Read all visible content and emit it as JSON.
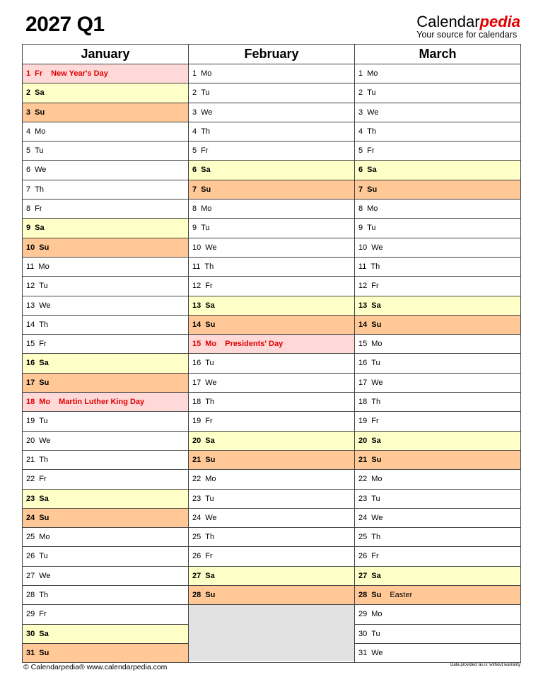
{
  "title": "2027 Q1",
  "logo": {
    "brand_main": "Calendar",
    "brand_accent": "pedia",
    "tagline": "Your source for calendars"
  },
  "colors": {
    "saturday": "#ffffc8",
    "sunday": "#ffc896",
    "holiday_bg": "#ffd8d8",
    "holiday_text": "#e00000",
    "empty": "#e2e2e2"
  },
  "months": [
    {
      "name": "January",
      "days": [
        [
          "1",
          "Fr",
          "holiday",
          "New Year's Day"
        ],
        [
          "2",
          "Sa",
          "sa",
          ""
        ],
        [
          "3",
          "Su",
          "su",
          ""
        ],
        [
          "4",
          "Mo",
          "",
          ""
        ],
        [
          "5",
          "Tu",
          "",
          ""
        ],
        [
          "6",
          "We",
          "",
          ""
        ],
        [
          "7",
          "Th",
          "",
          ""
        ],
        [
          "8",
          "Fr",
          "",
          ""
        ],
        [
          "9",
          "Sa",
          "sa",
          ""
        ],
        [
          "10",
          "Su",
          "su",
          ""
        ],
        [
          "11",
          "Mo",
          "",
          ""
        ],
        [
          "12",
          "Tu",
          "",
          ""
        ],
        [
          "13",
          "We",
          "",
          ""
        ],
        [
          "14",
          "Th",
          "",
          ""
        ],
        [
          "15",
          "Fr",
          "",
          ""
        ],
        [
          "16",
          "Sa",
          "sa",
          ""
        ],
        [
          "17",
          "Su",
          "su",
          ""
        ],
        [
          "18",
          "Mo",
          "holiday",
          "Martin Luther King Day"
        ],
        [
          "19",
          "Tu",
          "",
          ""
        ],
        [
          "20",
          "We",
          "",
          ""
        ],
        [
          "21",
          "Th",
          "",
          ""
        ],
        [
          "22",
          "Fr",
          "",
          ""
        ],
        [
          "23",
          "Sa",
          "sa",
          ""
        ],
        [
          "24",
          "Su",
          "su",
          ""
        ],
        [
          "25",
          "Mo",
          "",
          ""
        ],
        [
          "26",
          "Tu",
          "",
          ""
        ],
        [
          "27",
          "We",
          "",
          ""
        ],
        [
          "28",
          "Th",
          "",
          ""
        ],
        [
          "29",
          "Fr",
          "",
          ""
        ],
        [
          "30",
          "Sa",
          "sa",
          ""
        ],
        [
          "31",
          "Su",
          "su",
          ""
        ]
      ]
    },
    {
      "name": "February",
      "days": [
        [
          "1",
          "Mo",
          "",
          ""
        ],
        [
          "2",
          "Tu",
          "",
          ""
        ],
        [
          "3",
          "We",
          "",
          ""
        ],
        [
          "4",
          "Th",
          "",
          ""
        ],
        [
          "5",
          "Fr",
          "",
          ""
        ],
        [
          "6",
          "Sa",
          "sa",
          ""
        ],
        [
          "7",
          "Su",
          "su",
          ""
        ],
        [
          "8",
          "Mo",
          "",
          ""
        ],
        [
          "9",
          "Tu",
          "",
          ""
        ],
        [
          "10",
          "We",
          "",
          ""
        ],
        [
          "11",
          "Th",
          "",
          ""
        ],
        [
          "12",
          "Fr",
          "",
          ""
        ],
        [
          "13",
          "Sa",
          "sa",
          ""
        ],
        [
          "14",
          "Su",
          "su",
          ""
        ],
        [
          "15",
          "Mo",
          "holiday",
          "Presidents' Day"
        ],
        [
          "16",
          "Tu",
          "",
          ""
        ],
        [
          "17",
          "We",
          "",
          ""
        ],
        [
          "18",
          "Th",
          "",
          ""
        ],
        [
          "19",
          "Fr",
          "",
          ""
        ],
        [
          "20",
          "Sa",
          "sa",
          ""
        ],
        [
          "21",
          "Su",
          "su",
          ""
        ],
        [
          "22",
          "Mo",
          "",
          ""
        ],
        [
          "23",
          "Tu",
          "",
          ""
        ],
        [
          "24",
          "We",
          "",
          ""
        ],
        [
          "25",
          "Th",
          "",
          ""
        ],
        [
          "26",
          "Fr",
          "",
          ""
        ],
        [
          "27",
          "Sa",
          "sa",
          ""
        ],
        [
          "28",
          "Su",
          "su",
          ""
        ]
      ]
    },
    {
      "name": "March",
      "days": [
        [
          "1",
          "Mo",
          "",
          ""
        ],
        [
          "2",
          "Tu",
          "",
          ""
        ],
        [
          "3",
          "We",
          "",
          ""
        ],
        [
          "4",
          "Th",
          "",
          ""
        ],
        [
          "5",
          "Fr",
          "",
          ""
        ],
        [
          "6",
          "Sa",
          "sa",
          ""
        ],
        [
          "7",
          "Su",
          "su",
          ""
        ],
        [
          "8",
          "Mo",
          "",
          ""
        ],
        [
          "9",
          "Tu",
          "",
          ""
        ],
        [
          "10",
          "We",
          "",
          ""
        ],
        [
          "11",
          "Th",
          "",
          ""
        ],
        [
          "12",
          "Fr",
          "",
          ""
        ],
        [
          "13",
          "Sa",
          "sa",
          ""
        ],
        [
          "14",
          "Su",
          "su",
          ""
        ],
        [
          "15",
          "Mo",
          "",
          ""
        ],
        [
          "16",
          "Tu",
          "",
          ""
        ],
        [
          "17",
          "We",
          "",
          ""
        ],
        [
          "18",
          "Th",
          "",
          ""
        ],
        [
          "19",
          "Fr",
          "",
          ""
        ],
        [
          "20",
          "Sa",
          "sa",
          ""
        ],
        [
          "21",
          "Su",
          "su",
          ""
        ],
        [
          "22",
          "Mo",
          "",
          ""
        ],
        [
          "23",
          "Tu",
          "",
          ""
        ],
        [
          "24",
          "We",
          "",
          ""
        ],
        [
          "25",
          "Th",
          "",
          ""
        ],
        [
          "26",
          "Fr",
          "",
          ""
        ],
        [
          "27",
          "Sa",
          "sa",
          ""
        ],
        [
          "28",
          "Su",
          "su",
          "Easter"
        ],
        [
          "29",
          "Mo",
          "",
          ""
        ],
        [
          "30",
          "Tu",
          "",
          ""
        ],
        [
          "31",
          "We",
          "",
          ""
        ]
      ]
    }
  ],
  "footer": {
    "left": "© Calendarpedia®   www.calendarpedia.com",
    "right": "Data provided 'as is' without warranty"
  }
}
